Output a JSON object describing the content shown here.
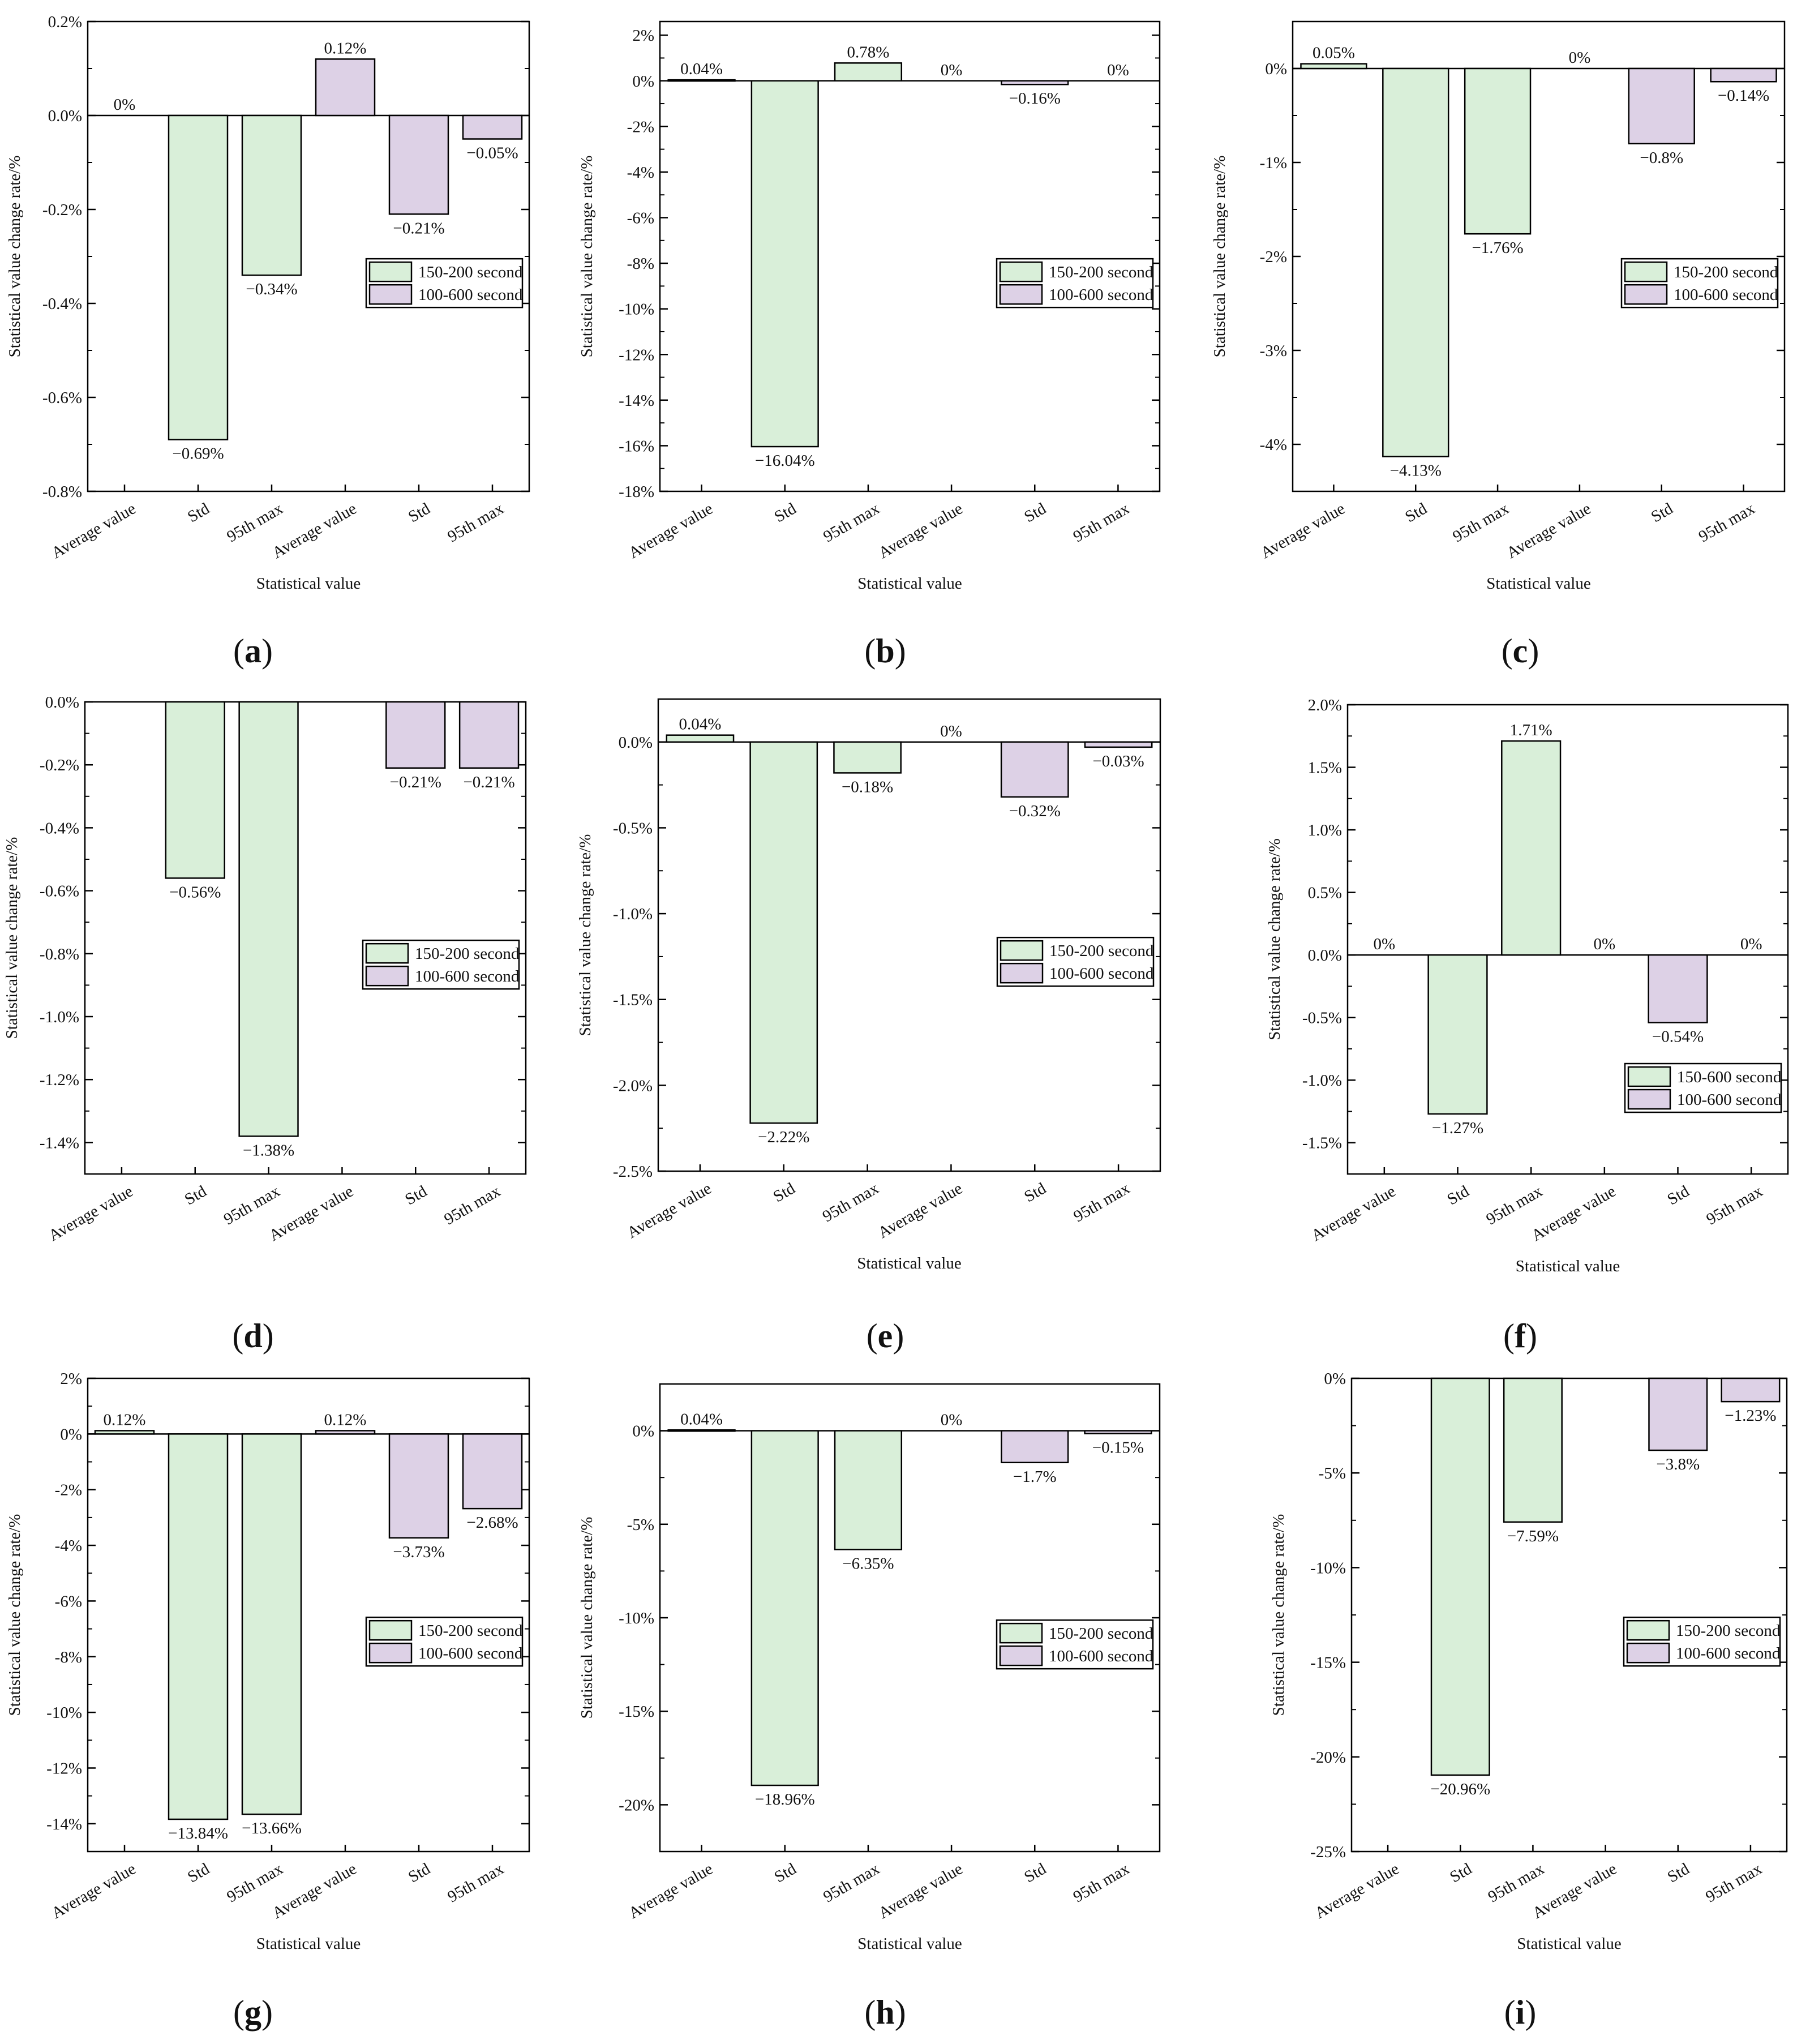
{
  "colors": {
    "series_a": "#d9efd9",
    "series_b": "#ddd1e6",
    "axis": "#000000",
    "text": "#111111"
  },
  "chart_data": [
    {
      "panel": "(a)",
      "caption_open": "(",
      "caption_letter": "a",
      "caption_close": ")",
      "type": "bar",
      "categories": [
        "Average value",
        "Std",
        "95th max",
        "Average value",
        "Std",
        "95th max"
      ],
      "series": [
        {
          "name": "150-200 second",
          "indices": [
            0,
            1,
            2
          ]
        },
        {
          "name": "100-600 second",
          "indices": [
            3,
            4,
            5
          ]
        }
      ],
      "values": [
        0,
        -0.69,
        -0.34,
        0.12,
        -0.21,
        -0.05
      ],
      "labels": [
        "0%",
        "−0.69%",
        "−0.34%",
        "0.12%",
        "−0.21%",
        "−0.05%"
      ],
      "ylim": [
        -0.8,
        0.2
      ],
      "ticks": [
        0.2,
        0,
        -0.2,
        -0.4,
        -0.6,
        -0.8
      ],
      "tick_labels": [
        "0.2%",
        "0.0%",
        "-0.2%",
        "-0.4%",
        "-0.6%",
        "-0.8%"
      ],
      "ylabel": "Statistical value change rate/%",
      "xlabel": "Statistical value",
      "legend": [
        "150-200 second",
        "100-600 second"
      ],
      "legend_position": "right-middle"
    },
    {
      "panel": "(b)",
      "caption_open": "(",
      "caption_letter": "b",
      "caption_close": ")",
      "type": "bar",
      "categories": [
        "Average value",
        "Std",
        "95th max",
        "Average value",
        "Std",
        "95th max"
      ],
      "series": [
        {
          "name": "150-200 second",
          "indices": [
            0,
            1,
            2
          ]
        },
        {
          "name": "100-600 second",
          "indices": [
            3,
            4,
            5
          ]
        }
      ],
      "values": [
        0.04,
        -16.04,
        0.78,
        0,
        -0.16,
        0
      ],
      "labels": [
        "0.04%",
        "−16.04%",
        "0.78%",
        "0%",
        "−0.16%",
        "0%"
      ],
      "ylim": [
        -18,
        2.6
      ],
      "ticks": [
        2,
        0,
        -2,
        -4,
        -6,
        -8,
        -10,
        -12,
        -14,
        -16,
        -18
      ],
      "tick_labels": [
        "2%",
        "0%",
        "-2%",
        "-4%",
        "-6%",
        "-8%",
        "-10%",
        "-12%",
        "-14%",
        "-16%",
        "-18%"
      ],
      "ylabel": "Statistical value change rate/%",
      "xlabel": "Statistical value",
      "legend": [
        "150-200 second",
        "100-600 second"
      ],
      "legend_position": "right-middle"
    },
    {
      "panel": "(c)",
      "caption_open": "(",
      "caption_letter": "c",
      "caption_close": ")",
      "type": "bar",
      "categories": [
        "Average value",
        "Std",
        "95th max",
        "Average value",
        "Std",
        "95th max"
      ],
      "series": [
        {
          "name": "150-200 second",
          "indices": [
            0,
            1,
            2
          ]
        },
        {
          "name": "100-600 second",
          "indices": [
            3,
            4,
            5
          ]
        }
      ],
      "values": [
        0.05,
        -4.13,
        -1.76,
        0,
        -0.8,
        -0.14
      ],
      "labels": [
        "0.05%",
        "−4.13%",
        "−1.76%",
        "0%",
        "−0.8%",
        "−0.14%"
      ],
      "ylim": [
        -4.5,
        0.5
      ],
      "ticks": [
        0,
        -1,
        -2,
        -3,
        -4
      ],
      "tick_labels": [
        "0%",
        "-1%",
        "-2%",
        "-3%",
        "-4%"
      ],
      "ylabel": "Statistical value change rate/%",
      "xlabel": "Statistical value",
      "legend": [
        "150-200 second",
        "100-600 second"
      ],
      "legend_position": "right-middle"
    },
    {
      "panel": "(d)",
      "caption_open": "(",
      "caption_letter": "d",
      "caption_close": ")",
      "type": "bar",
      "categories": [
        "Average value",
        "Std",
        "95th max",
        "Average value",
        "Std",
        "95th max"
      ],
      "series": [
        {
          "name": "150-200 second",
          "indices": [
            0,
            1,
            2
          ]
        },
        {
          "name": "100-600 second",
          "indices": [
            3,
            4,
            5
          ]
        }
      ],
      "values": [
        0,
        -0.56,
        -1.38,
        0,
        -0.21,
        -0.21
      ],
      "labels": [
        "",
        "−0.56%",
        "−1.38%",
        "",
        "−0.21%",
        "−0.21%"
      ],
      "ylim": [
        -1.5,
        0
      ],
      "ticks": [
        0,
        -0.2,
        -0.4,
        -0.6,
        -0.8,
        -1.0,
        -1.2,
        -1.4
      ],
      "tick_labels": [
        "0.0%",
        "-0.2%",
        "-0.4%",
        "-0.6%",
        "-0.8%",
        "-1.0%",
        "-1.2%",
        "-1.4%"
      ],
      "ylabel": "Statistical value change rate/%",
      "xlabel": "",
      "legend": [
        "150-200 second",
        "100-600 second"
      ],
      "legend_position": "right-middle"
    },
    {
      "panel": "(e)",
      "caption_open": "(",
      "caption_letter": "e",
      "caption_close": ")",
      "type": "bar",
      "categories": [
        "Average value",
        "Std",
        "95th max",
        "Average value",
        "Std",
        "95th max"
      ],
      "series": [
        {
          "name": "150-200 second",
          "indices": [
            0,
            1,
            2
          ]
        },
        {
          "name": "100-600 second",
          "indices": [
            3,
            4,
            5
          ]
        }
      ],
      "values": [
        0.04,
        -2.22,
        -0.18,
        0,
        -0.32,
        -0.03
      ],
      "labels": [
        "0.04%",
        "−2.22%",
        "−0.18%",
        "0%",
        "−0.32%",
        "−0.03%"
      ],
      "ylim": [
        -2.5,
        0.25
      ],
      "ticks": [
        0,
        -0.5,
        -1.0,
        -1.5,
        -2.0,
        -2.5
      ],
      "tick_labels": [
        "0.0%",
        "-0.5%",
        "-1.0%",
        "-1.5%",
        "-2.0%",
        "-2.5%"
      ],
      "ylabel": "Statistical value change rate/%",
      "xlabel": "Statistical value",
      "legend": [
        "150-200 second",
        "100-600 second"
      ],
      "legend_position": "right-middle"
    },
    {
      "panel": "(f)",
      "caption_open": "(",
      "caption_letter": "f",
      "caption_close": ")",
      "type": "bar",
      "categories": [
        "Average value",
        "Std",
        "95th max",
        "Average value",
        "Std",
        "95th max"
      ],
      "series": [
        {
          "name": "150-600 second",
          "indices": [
            0,
            1,
            2
          ]
        },
        {
          "name": "100-600 second",
          "indices": [
            3,
            4,
            5
          ]
        }
      ],
      "values": [
        0,
        -1.27,
        1.71,
        0,
        -0.54,
        0
      ],
      "labels": [
        "0%",
        "−1.27%",
        "1.71%",
        "0%",
        "−0.54%",
        "0%"
      ],
      "ylim": [
        -1.75,
        2.0
      ],
      "ticks": [
        2.0,
        1.5,
        1.0,
        0.5,
        0,
        -0.5,
        -1.0,
        -1.5
      ],
      "tick_labels": [
        "2.0%",
        "1.5%",
        "1.0%",
        "0.5%",
        "0.0%",
        "-0.5%",
        "-1.0%",
        "-1.5%"
      ],
      "ylabel": "Statistical value change rate/%",
      "xlabel": "Statistical value",
      "legend": [
        "150-600 second",
        "100-600 second"
      ],
      "legend_position": "bottom-right"
    },
    {
      "panel": "(g)",
      "caption_open": "(",
      "caption_letter": "g",
      "caption_close": ")",
      "type": "bar",
      "categories": [
        "Average value",
        "Std",
        "95th max",
        "Average value",
        "Std",
        "95th max"
      ],
      "series": [
        {
          "name": "150-200 second",
          "indices": [
            0,
            1,
            2
          ]
        },
        {
          "name": "100-600 second",
          "indices": [
            3,
            4,
            5
          ]
        }
      ],
      "values": [
        0.12,
        -13.84,
        -13.66,
        0.12,
        -3.73,
        -2.68
      ],
      "labels": [
        "0.12%",
        "−13.84%",
        "−13.66%",
        "0.12%",
        "−3.73%",
        "−2.68%"
      ],
      "ylim": [
        -15,
        2
      ],
      "ticks": [
        2,
        0,
        -2,
        -4,
        -6,
        -8,
        -10,
        -12,
        -14
      ],
      "tick_labels": [
        "2%",
        "0%",
        "-2%",
        "-4%",
        "-6%",
        "-8%",
        "-10%",
        "-12%",
        "-14%"
      ],
      "ylabel": "Statistical value change rate/%",
      "xlabel": "Statistical value",
      "legend": [
        "150-200 second",
        "100-600 second"
      ],
      "legend_position": "right-middle"
    },
    {
      "panel": "(h)",
      "caption_open": "(",
      "caption_letter": "h",
      "caption_close": ")",
      "type": "bar",
      "categories": [
        "Average value",
        "Std",
        "95th max",
        "Average value",
        "Std",
        "95th max"
      ],
      "series": [
        {
          "name": "150-200 second",
          "indices": [
            0,
            1,
            2
          ]
        },
        {
          "name": "100-600 second",
          "indices": [
            3,
            4,
            5
          ]
        }
      ],
      "values": [
        0.04,
        -18.96,
        -6.35,
        0,
        -1.7,
        -0.15
      ],
      "labels": [
        "0.04%",
        "−18.96%",
        "−6.35%",
        "0%",
        "−1.7%",
        "−0.15%"
      ],
      "ylim": [
        -22.5,
        2.5
      ],
      "ticks": [
        0,
        -5,
        -10,
        -15,
        -20
      ],
      "tick_labels": [
        "0%",
        "-5%",
        "-10%",
        "-15%",
        "-20%"
      ],
      "ylabel": "Statistical value change rate/%",
      "xlabel": "Statistical value",
      "legend": [
        "150-200 second",
        "100-600 second"
      ],
      "legend_position": "right-middle"
    },
    {
      "panel": "(i)",
      "caption_open": "(",
      "caption_letter": "i",
      "caption_close": ")",
      "type": "bar",
      "categories": [
        "Average value",
        "Std",
        "95th max",
        "Average value",
        "Std",
        "95th max"
      ],
      "series": [
        {
          "name": "150-200 second",
          "indices": [
            0,
            1,
            2
          ]
        },
        {
          "name": "100-600 second",
          "indices": [
            3,
            4,
            5
          ]
        }
      ],
      "values": [
        0,
        -20.96,
        -7.59,
        0,
        -3.8,
        -1.23
      ],
      "labels": [
        "",
        "−20.96%",
        "−7.59%",
        "",
        "−3.8%",
        "−1.23%"
      ],
      "ylim": [
        -25,
        0
      ],
      "ticks": [
        0,
        -5,
        -10,
        -15,
        -20,
        -25
      ],
      "tick_labels": [
        "0%",
        "-5%",
        "-10%",
        "-15%",
        "-20%",
        "-25%"
      ],
      "ylabel": "Statistical value change rate/%",
      "xlabel": "Statistical value",
      "legend": [
        "150-200 second",
        "100-600 second"
      ],
      "legend_position": "right-middle"
    }
  ]
}
